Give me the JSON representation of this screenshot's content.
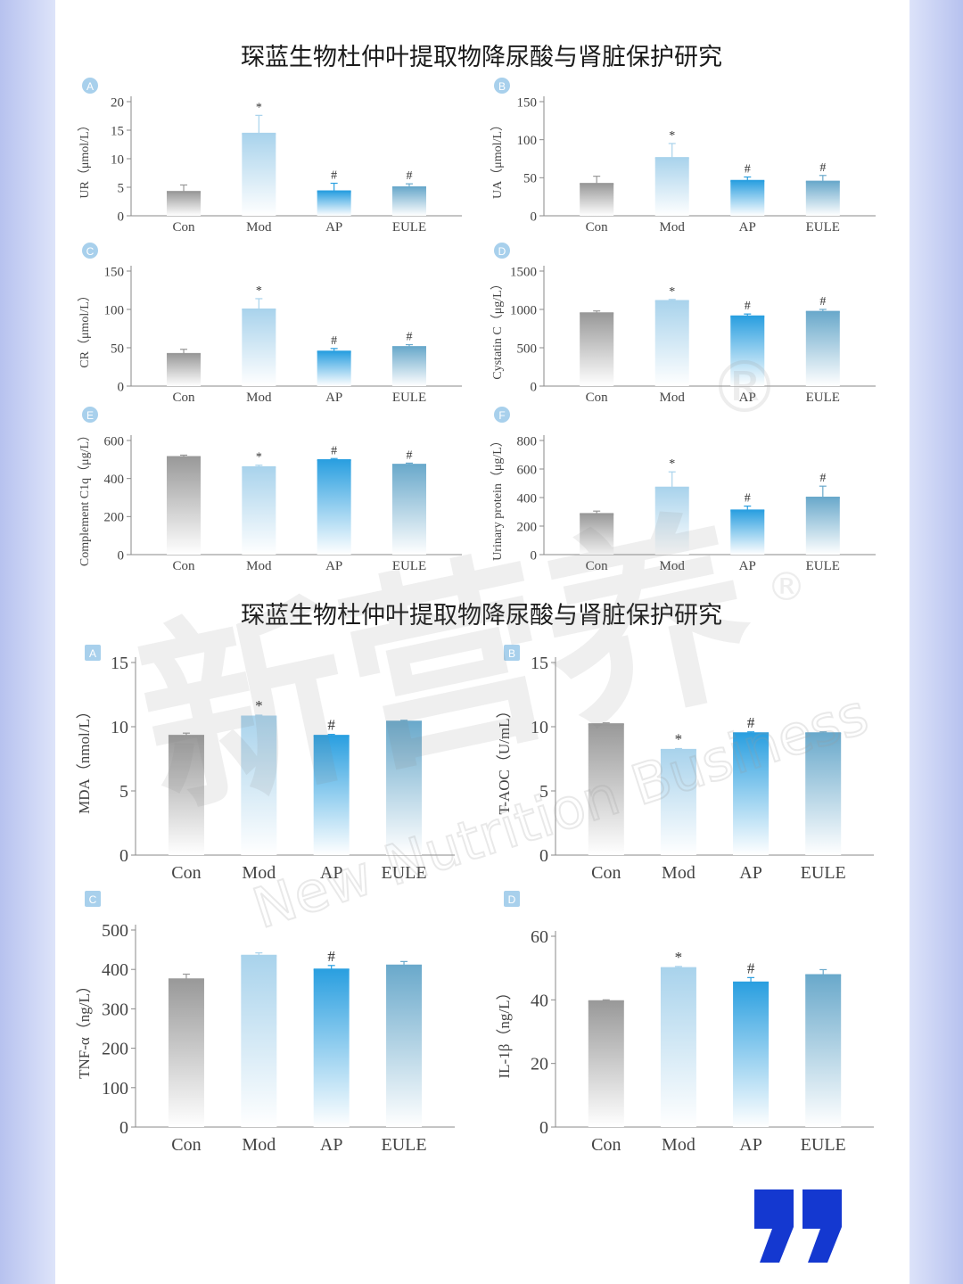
{
  "titles": {
    "top": "琛蓝生物杜仲叶提取物降尿酸与肾脏保护研究",
    "bottom": "琛蓝生物杜仲叶提取物降尿酸与肾脏保护研究"
  },
  "watermark": {
    "cn_text": "新营养",
    "en_text": "New Nutrition Business",
    "registered": "®"
  },
  "colors": {
    "con_top": "#999999",
    "mod_top": "#a9d3ec",
    "ap_top": "#2a9fe0",
    "eule_top": "#6aa9cb",
    "badge": "#a8d0ec",
    "quote_blue": "#1438d0"
  },
  "icons": {
    "quote": "quote-mark-icon"
  },
  "chart_data": [
    {
      "type": "bar",
      "panel": "A",
      "ylabel": "UR（μmol/L）",
      "categories": [
        "Con",
        "Mod",
        "AP",
        "EULE"
      ],
      "values": [
        4.2,
        14.4,
        4.3,
        5.0
      ],
      "errors": [
        1.2,
        3.2,
        1.4,
        0.6
      ],
      "annotations": [
        "",
        "*",
        "#",
        "#"
      ],
      "ylim": [
        0,
        20
      ],
      "yticks": [
        0,
        5,
        10,
        15,
        20
      ]
    },
    {
      "type": "bar",
      "panel": "B",
      "ylabel": "UA（μmol/L）",
      "categories": [
        "Con",
        "Mod",
        "AP",
        "EULE"
      ],
      "values": [
        42,
        76,
        46,
        45
      ],
      "errors": [
        10,
        19,
        5,
        8
      ],
      "annotations": [
        "",
        "*",
        "#",
        "#"
      ],
      "ylim": [
        0,
        150
      ],
      "yticks": [
        0,
        50,
        100,
        150
      ]
    },
    {
      "type": "bar",
      "panel": "C",
      "ylabel": "CR（μmol/L）",
      "categories": [
        "Con",
        "Mod",
        "AP",
        "EULE"
      ],
      "values": [
        42,
        100,
        45,
        51
      ],
      "errors": [
        6,
        14,
        4,
        3
      ],
      "annotations": [
        "",
        "*",
        "#",
        "#"
      ],
      "ylim": [
        0,
        150
      ],
      "yticks": [
        0,
        50,
        100,
        150
      ]
    },
    {
      "type": "bar",
      "panel": "D",
      "ylabel": "Cystatin C（μg/L）",
      "categories": [
        "Con",
        "Mod",
        "AP",
        "EULE"
      ],
      "values": [
        950,
        1110,
        910,
        970
      ],
      "errors": [
        30,
        20,
        30,
        30
      ],
      "annotations": [
        "",
        "*",
        "#",
        "#"
      ],
      "ylim": [
        0,
        1500
      ],
      "yticks": [
        0,
        500,
        1000,
        1500
      ]
    },
    {
      "type": "bar",
      "panel": "E",
      "ylabel": "Complement C1q（μg/L）",
      "categories": [
        "Con",
        "Mod",
        "AP",
        "EULE"
      ],
      "values": [
        513,
        460,
        497,
        473
      ],
      "errors": [
        10,
        10,
        8,
        8
      ],
      "annotations": [
        "",
        "*",
        "#",
        "#"
      ],
      "ylim": [
        0,
        600
      ],
      "yticks": [
        0,
        200,
        400,
        600
      ]
    },
    {
      "type": "bar",
      "panel": "F",
      "ylabel": "Urinary protein（μg/L）",
      "categories": [
        "Con",
        "Mod",
        "AP",
        "EULE"
      ],
      "values": [
        285,
        470,
        310,
        400
      ],
      "errors": [
        20,
        110,
        30,
        80
      ],
      "annotations": [
        "",
        "*",
        "#",
        "#"
      ],
      "ylim": [
        0,
        800
      ],
      "yticks": [
        0,
        200,
        400,
        600,
        800
      ]
    },
    {
      "type": "bar",
      "panel": "A",
      "ylabel": "MDA（nmol/L）",
      "categories": [
        "Con",
        "Mod",
        "AP",
        "EULE"
      ],
      "values": [
        9.3,
        10.8,
        9.3,
        10.4
      ],
      "errors": [
        0.2,
        0.1,
        0.1,
        0.1
      ],
      "annotations": [
        "",
        "*",
        "#",
        ""
      ],
      "ylim": [
        0,
        15
      ],
      "yticks": [
        0,
        5,
        10,
        15
      ]
    },
    {
      "type": "bar",
      "panel": "B",
      "ylabel": "T-AOC（U/mL）",
      "categories": [
        "Con",
        "Mod",
        "AP",
        "EULE"
      ],
      "values": [
        10.2,
        8.2,
        9.5,
        9.5
      ],
      "errors": [
        0.1,
        0.1,
        0.1,
        0.1
      ],
      "annotations": [
        "",
        "*",
        "#",
        ""
      ],
      "ylim": [
        0,
        15
      ],
      "yticks": [
        0,
        5,
        10,
        15
      ]
    },
    {
      "type": "bar",
      "panel": "C",
      "ylabel": "TNF-α（ng/L）",
      "categories": [
        "Con",
        "Mod",
        "AP",
        "EULE"
      ],
      "values": [
        375,
        435,
        400,
        410
      ],
      "errors": [
        13,
        7,
        10,
        10
      ],
      "annotations": [
        "",
        "",
        "#",
        ""
      ],
      "ylim": [
        0,
        500
      ],
      "yticks": [
        0,
        100,
        200,
        300,
        400,
        500
      ]
    },
    {
      "type": "bar",
      "panel": "D",
      "ylabel": "IL-1β（ng/L）",
      "categories": [
        "Con",
        "Mod",
        "AP",
        "EULE"
      ],
      "values": [
        39.6,
        50,
        45.5,
        47.8
      ],
      "errors": [
        0.4,
        0.5,
        1.5,
        1.7
      ],
      "annotations": [
        "",
        "*",
        "#",
        ""
      ],
      "ylim": [
        0,
        60
      ],
      "yticks": [
        0,
        20,
        40,
        60
      ]
    }
  ]
}
